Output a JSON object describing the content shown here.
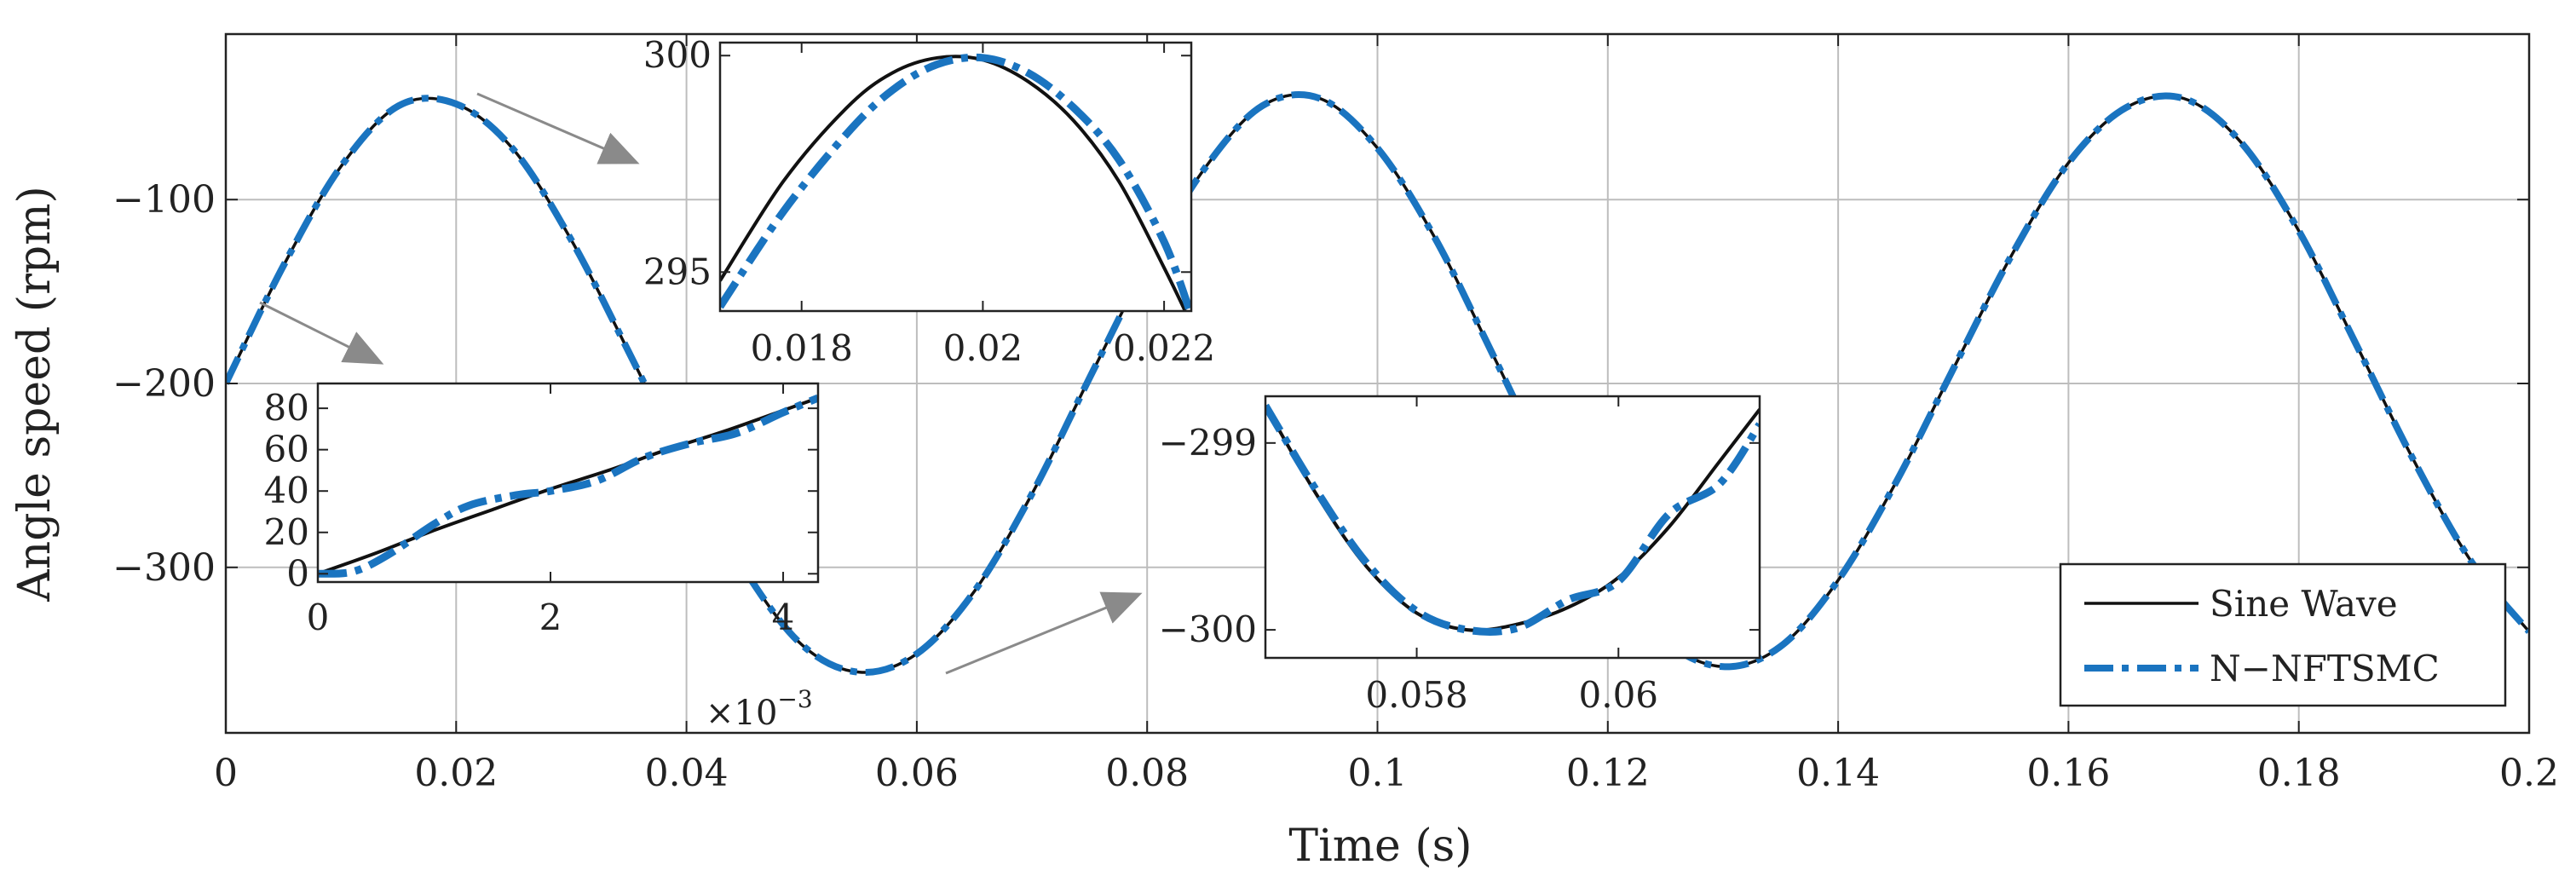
{
  "chart_data": {
    "type": "line",
    "title": "",
    "xlabel": "Time (s)",
    "ylabel": "Angle speed (rpm)",
    "xlim": [
      0,
      0.2
    ],
    "ylim": [
      -390,
      -10
    ],
    "x_ticks": [
      0,
      0.02,
      0.04,
      0.06,
      0.08,
      0.1,
      0.12,
      0.14,
      0.16,
      0.18,
      0.2
    ],
    "x_tick_labels": [
      "0",
      "0.02",
      "0.04",
      "0.06",
      "0.08",
      "0.1",
      "0.12",
      "0.14",
      "0.16",
      "0.18",
      "0.2"
    ],
    "y_ticks": [
      -300,
      -200,
      -100
    ],
    "y_tick_labels": [
      "−300",
      "−200",
      "−100"
    ],
    "grid": true,
    "legend_position": "bottom-right",
    "series": [
      {
        "name": "Sine Wave",
        "color": "#111111",
        "style": "solid",
        "x": [
          0,
          0.005,
          0.01,
          0.015,
          0.02,
          0.025,
          0.03,
          0.035,
          0.04,
          0.045,
          0.05,
          0.055,
          0.06,
          0.065,
          0.07,
          0.075,
          0.08,
          0.085,
          0.09,
          0.095,
          0.1,
          0.105,
          0.11,
          0.115,
          0.12,
          0.125,
          0.13,
          0.135,
          0.14,
          0.145,
          0.15,
          0.155,
          0.16,
          0.165,
          0.17,
          0.175,
          0.18,
          0.185,
          0.19,
          0.195,
          0.2
        ],
        "y": [
          -200,
          -136,
          -82,
          -49,
          -48,
          -73,
          -122,
          -183,
          -246,
          -301,
          -342,
          -357,
          -347,
          -313,
          -260,
          -197,
          -135,
          -83,
          -49,
          -45,
          -72,
          -121,
          -184,
          -248,
          -302,
          -340,
          -354,
          -343,
          -307,
          -254,
          -192,
          -131,
          -80,
          -50,
          -45,
          -69,
          -117,
          -179,
          -242,
          -297,
          -335
        ]
      },
      {
        "name": "N−NFTSMC",
        "color": "#1a74c0",
        "style": "dash-dot",
        "x": [
          0,
          0.005,
          0.01,
          0.015,
          0.02,
          0.025,
          0.03,
          0.035,
          0.04,
          0.045,
          0.05,
          0.055,
          0.06,
          0.065,
          0.07,
          0.075,
          0.08,
          0.085,
          0.09,
          0.095,
          0.1,
          0.105,
          0.11,
          0.115,
          0.12,
          0.125,
          0.13,
          0.135,
          0.14,
          0.145,
          0.15,
          0.155,
          0.16,
          0.165,
          0.17,
          0.175,
          0.18,
          0.185,
          0.19,
          0.195,
          0.2
        ],
        "y": [
          -200,
          -136,
          -82,
          -49,
          -48,
          -73,
          -122,
          -183,
          -246,
          -301,
          -342,
          -357,
          -347,
          -313,
          -260,
          -197,
          -135,
          -83,
          -49,
          -45,
          -72,
          -121,
          -184,
          -248,
          -302,
          -340,
          -354,
          -343,
          -307,
          -254,
          -192,
          -131,
          -80,
          -50,
          -45,
          -69,
          -117,
          -179,
          -242,
          -297,
          -335
        ]
      }
    ],
    "insets": [
      {
        "xlim": [
          0.0171,
          0.0223
        ],
        "ylim": [
          294.1,
          300.3
        ],
        "x_ticks": [
          0.018,
          0.02,
          0.022
        ],
        "x_tick_labels": [
          "0.018",
          "0.02",
          "0.022"
        ],
        "y_ticks": [
          295,
          300
        ],
        "y_tick_labels": [
          "295",
          "300"
        ],
        "series": [
          {
            "name": "Sine Wave",
            "x": [
              0.0171,
              0.0178,
              0.0185,
              0.019,
              0.0195,
              0.02,
              0.0205,
              0.021,
              0.0215,
              0.022,
              0.0223
            ],
            "y": [
              294.8,
              297.1,
              298.8,
              299.6,
              299.95,
              299.9,
              299.4,
              298.5,
              297.1,
              295.1,
              293.8
            ]
          },
          {
            "name": "N−NFTSMC",
            "x": [
              0.0171,
              0.0178,
              0.0185,
              0.019,
              0.0195,
              0.02,
              0.0205,
              0.021,
              0.0215,
              0.022,
              0.0223
            ],
            "y": [
              294.2,
              296.4,
              298.2,
              299.2,
              299.8,
              299.95,
              299.6,
              298.8,
              297.6,
              295.7,
              294.0
            ]
          }
        ]
      },
      {
        "xlim": [
          0,
          0.0043
        ],
        "ylim": [
          -4,
          92
        ],
        "x_ticks": [
          0,
          0.002,
          0.004
        ],
        "x_tick_labels": [
          "0",
          "2",
          "4"
        ],
        "y_ticks": [
          0,
          20,
          40,
          60,
          80
        ],
        "y_tick_labels": [
          "0",
          "20",
          "40",
          "60",
          "80"
        ],
        "x_multiplier_label": "×10",
        "x_multiplier_exponent": "−3",
        "series": [
          {
            "name": "Sine Wave",
            "x": [
              0,
              0.0005,
              0.001,
              0.0015,
              0.002,
              0.0025,
              0.003,
              0.0035,
              0.004,
              0.0043
            ],
            "y": [
              0,
              10,
              21,
              31,
              41,
              50,
              60,
              69,
              79,
              85
            ]
          },
          {
            "name": "N−NFTSMC",
            "x": [
              0,
              0.0003,
              0.0006,
              0.001,
              0.0013,
              0.0017,
              0.002,
              0.0024,
              0.0028,
              0.0032,
              0.0036,
              0.004,
              0.0043
            ],
            "y": [
              0,
              1,
              9,
              24,
              33,
              38,
              40,
              45,
              56,
              63,
              68,
              78,
              85
            ]
          }
        ]
      },
      {
        "xlim": [
          0.0565,
          0.0614
        ],
        "ylim": [
          -300.15,
          -298.75
        ],
        "x_ticks": [
          0.058,
          0.06
        ],
        "x_tick_labels": [
          "0.058",
          "0.06"
        ],
        "y_ticks": [
          -300,
          -299
        ],
        "y_tick_labels": [
          "−300",
          "−299"
        ],
        "series": [
          {
            "name": "Sine Wave",
            "x": [
              0.0565,
              0.057,
              0.0575,
              0.058,
              0.0585,
              0.059,
              0.0595,
              0.06,
              0.0605,
              0.061,
              0.0614
            ],
            "y": [
              -298.8,
              -299.27,
              -299.66,
              -299.91,
              -300.0,
              -299.97,
              -299.88,
              -299.72,
              -299.45,
              -299.1,
              -298.82
            ]
          },
          {
            "name": "N−NFTSMC",
            "x": [
              0.0565,
              0.057,
              0.0575,
              0.058,
              0.0585,
              0.059,
              0.0595,
              0.06,
              0.0605,
              0.061,
              0.0614
            ],
            "y": [
              -298.8,
              -299.25,
              -299.64,
              -299.9,
              -300.0,
              -299.99,
              -299.84,
              -299.74,
              -299.38,
              -299.22,
              -298.9
            ]
          }
        ]
      }
    ]
  }
}
